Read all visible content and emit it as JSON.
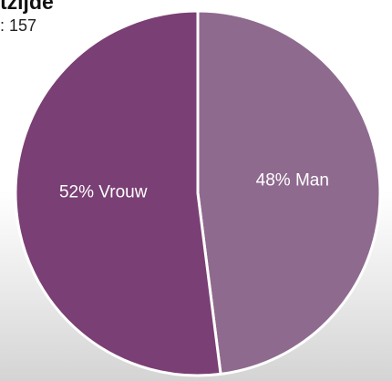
{
  "header": {
    "title": "tzijde",
    "subtitle": ": 157"
  },
  "chart_data": {
    "type": "pie",
    "title": "tzijde",
    "subtitle": ": 157",
    "slices": [
      {
        "label": "Man",
        "value": 48,
        "display": "48% Man",
        "color": "#8f6a8f"
      },
      {
        "label": "Vrouw",
        "value": 52,
        "display": "52% Vrouw",
        "color": "#7a3f74"
      }
    ],
    "start_angle_deg": 0,
    "direction": "clockwise",
    "separator_color": "#ffffff",
    "legend": "none"
  }
}
